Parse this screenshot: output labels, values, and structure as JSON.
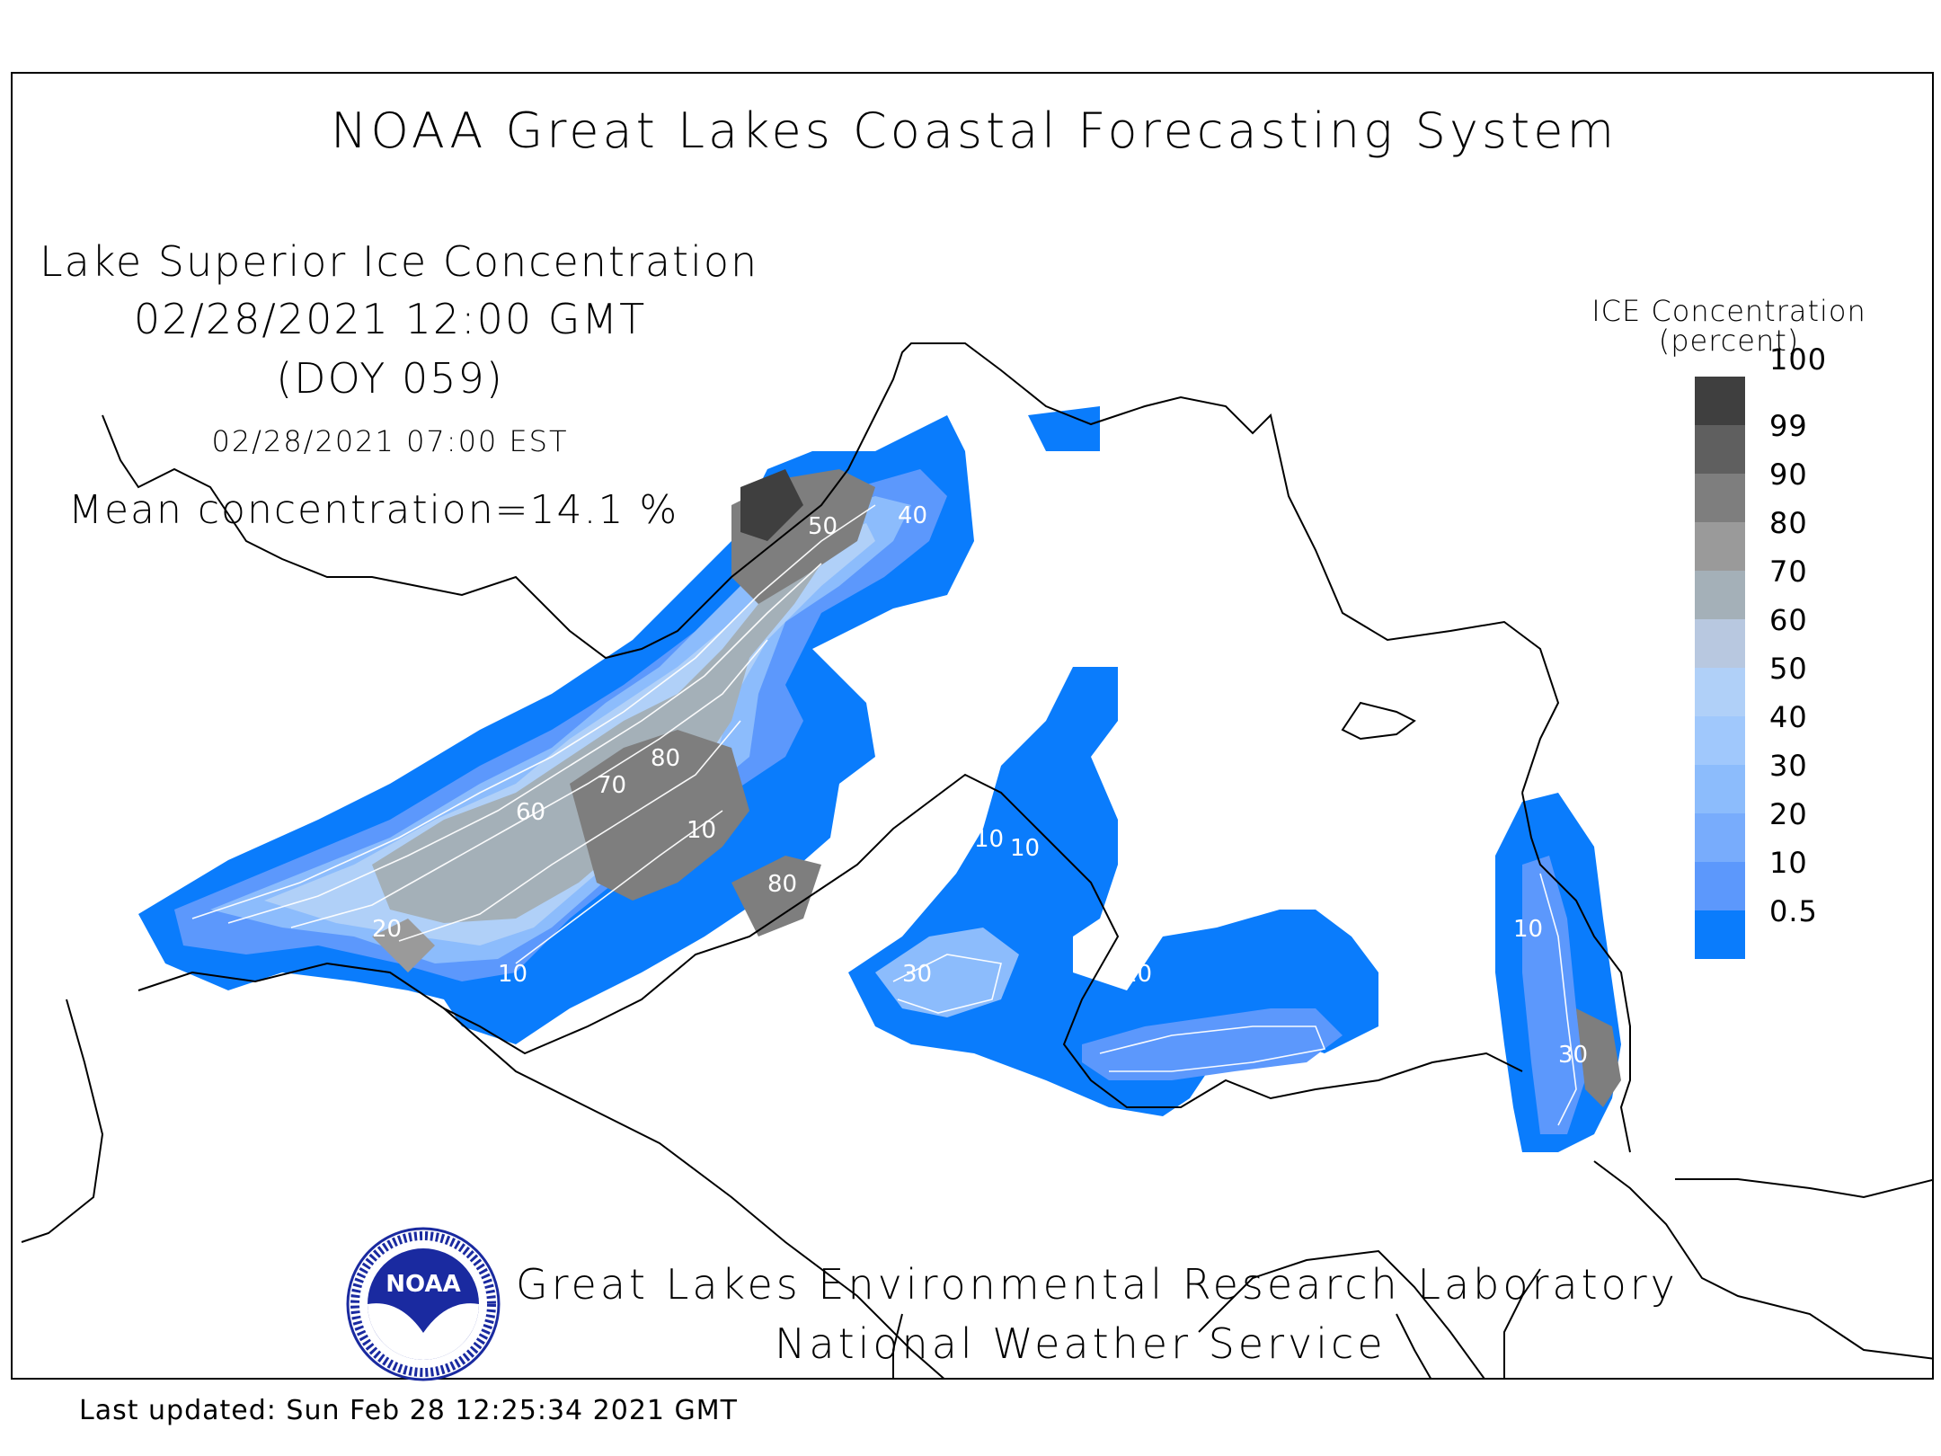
{
  "header": {
    "title": "NOAA Great Lakes Coastal Forecasting System",
    "subtitle": "Lake Superior Ice Concentration",
    "datetime_gmt": "02/28/2021 12:00 GMT",
    "doy": "(DOY 059)",
    "datetime_est": "02/28/2021 07:00 EST",
    "mean_concentration": "Mean concentration=14.1 %"
  },
  "legend": {
    "title_line1": "ICE Concentration",
    "title_line2": "(percent)",
    "levels": [
      {
        "label": "100",
        "color": "#3f3f3f"
      },
      {
        "label": "99",
        "color": "#5f5f5f"
      },
      {
        "label": "90",
        "color": "#7e7e7e"
      },
      {
        "label": "80",
        "color": "#9a9a9a"
      },
      {
        "label": "70",
        "color": "#a4b0b8"
      },
      {
        "label": "60",
        "color": "#b8c8e0"
      },
      {
        "label": "50",
        "color": "#b0d0f8"
      },
      {
        "label": "40",
        "color": "#a0c8fc"
      },
      {
        "label": "30",
        "color": "#8cbcfc"
      },
      {
        "label": "20",
        "color": "#78acfc"
      },
      {
        "label": "10",
        "color": "#5c98fc"
      },
      {
        "label": "0.5",
        "color": "#0a7cfc"
      }
    ]
  },
  "contour_labels": [
    "50",
    "40",
    "80",
    "70",
    "60",
    "10",
    "80",
    "10",
    "10",
    "10",
    "30",
    "10",
    "10",
    "20",
    "30"
  ],
  "footer": {
    "lab": "Great Lakes Environmental Research Laboratory",
    "service": "National Weather Service",
    "logo_text": "NOAA",
    "last_updated": "Last updated: Sun Feb 28 12:25:34 2021 GMT"
  }
}
